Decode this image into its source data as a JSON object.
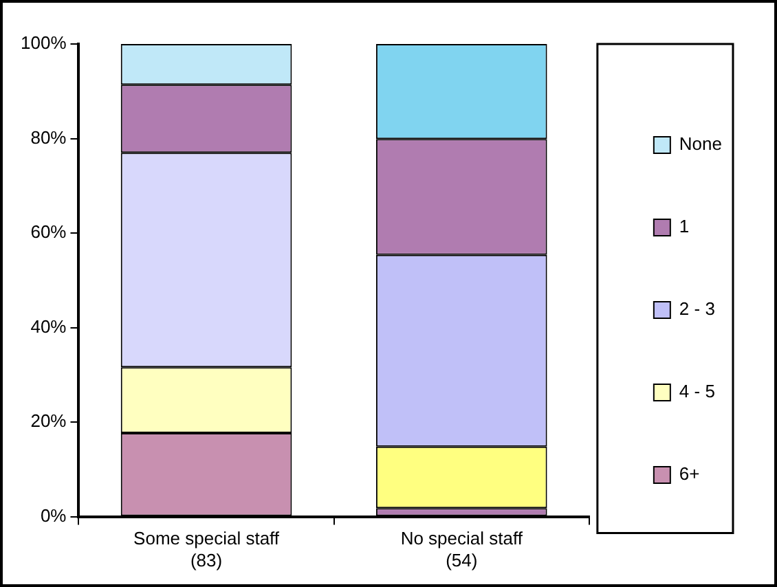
{
  "chart_data": {
    "type": "bar",
    "stacked": true,
    "categories": [
      "Some special staff (83)",
      "No special staff (54)"
    ],
    "series": [
      {
        "name": "6+",
        "color": "#c890b0",
        "colors": [
          "#c890b0",
          "#b07cb0"
        ],
        "values": [
          17.7,
          1.8
        ]
      },
      {
        "name": "4 - 5",
        "color": "#ffffc0",
        "colors": [
          "#ffffc0",
          "#ffff80"
        ],
        "values": [
          13.9,
          13.0
        ]
      },
      {
        "name": "2 - 3",
        "color": "#c0c0f8",
        "colors": [
          "#d8d8fc",
          "#c0c0f8"
        ],
        "values": [
          45.4,
          40.6
        ]
      },
      {
        "name": "1",
        "color": "#b07cb0",
        "colors": [
          "#b07cb0",
          "#b07cb0"
        ],
        "values": [
          14.4,
          24.5
        ]
      },
      {
        "name": "None",
        "color": "#c0e8f8",
        "colors": [
          "#c0e8f8",
          "#80d4f0"
        ],
        "values": [
          8.6,
          20.1
        ]
      }
    ],
    "ylim": [
      0,
      100
    ],
    "yticks": [
      {
        "value": 0,
        "label": "0%"
      },
      {
        "value": 20,
        "label": "20%"
      },
      {
        "value": 40,
        "label": "40%"
      },
      {
        "value": 60,
        "label": "60%"
      },
      {
        "value": 80,
        "label": "80%"
      },
      {
        "value": 100,
        "label": "100%"
      }
    ],
    "grid": false,
    "legend": "right"
  }
}
